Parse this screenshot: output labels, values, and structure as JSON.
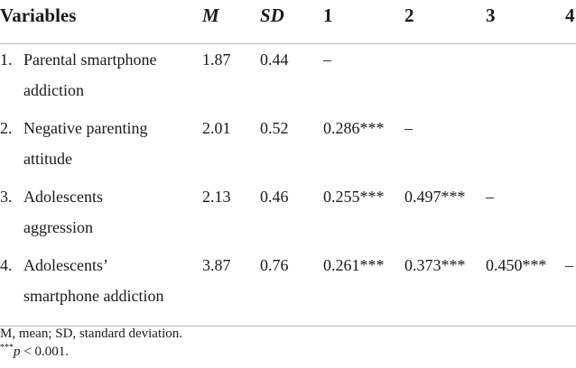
{
  "table": {
    "headers": {
      "variables": "Variables",
      "m": "M",
      "sd": "SD",
      "c1": "1",
      "c2": "2",
      "c3": "3",
      "c4": "4"
    },
    "rows": [
      {
        "num": "1.",
        "label_line1": "Parental smartphone",
        "label_line2": "addiction",
        "m": "1.87",
        "sd": "0.44",
        "c1": "–",
        "c2": "",
        "c3": "",
        "c4": ""
      },
      {
        "num": "2.",
        "label_line1": "Negative parenting",
        "label_line2": "attitude",
        "m": "2.01",
        "sd": "0.52",
        "c1": "0.286***",
        "c2": "–",
        "c3": "",
        "c4": ""
      },
      {
        "num": "3.",
        "label_line1": "Adolescents",
        "label_line2": "aggression",
        "m": "2.13",
        "sd": "0.46",
        "c1": "0.255***",
        "c2": "0.497***",
        "c3": "–",
        "c4": ""
      },
      {
        "num": "4.",
        "label_line1": "Adolescents’",
        "label_line2": "smartphone addiction",
        "m": "3.87",
        "sd": "0.76",
        "c1": "0.261***",
        "c2": "0.373***",
        "c3": "0.450***",
        "c4": "–"
      }
    ]
  },
  "notes": {
    "abbrev": "M, mean; SD, standard deviation.",
    "sig_stars": "***",
    "sig_p": "p",
    "sig_rest": " < 0.001."
  }
}
